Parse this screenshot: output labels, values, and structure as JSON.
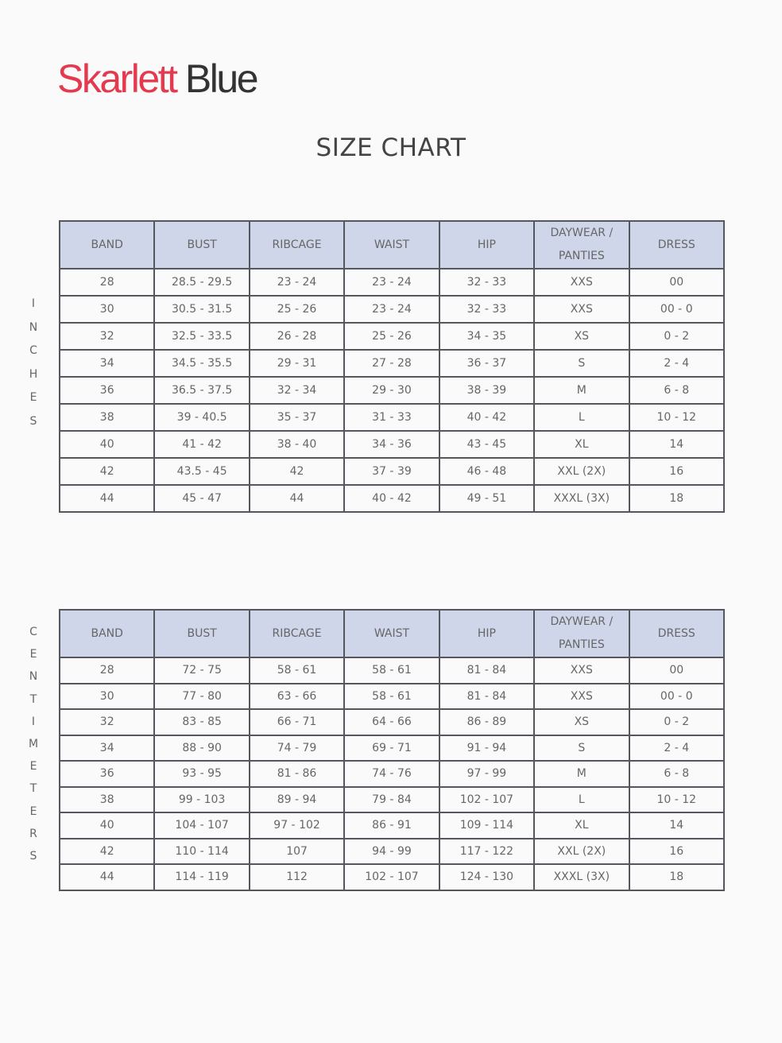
{
  "brand": {
    "part1": "Skarlett",
    "part2": "Blue",
    "colors": {
      "part1": "#e33a4f",
      "part2": "#333333"
    }
  },
  "title": "SIZE CHART",
  "header_color": "#d0d6e9",
  "headers": [
    "BAND",
    "BUST",
    "RIBCAGE",
    "WAIST",
    "HIP",
    "DAYWEAR / PANTIES",
    "DRESS"
  ],
  "inches": {
    "label": [
      "I",
      "N",
      "C",
      "H",
      "E",
      "S"
    ],
    "rows": [
      [
        "28",
        "28.5 - 29.5",
        "23 - 24",
        "23 - 24",
        "32 - 33",
        "XXS",
        "00"
      ],
      [
        "30",
        "30.5 - 31.5",
        "25 - 26",
        "23 - 24",
        "32 - 33",
        "XXS",
        "00 - 0"
      ],
      [
        "32",
        "32.5 - 33.5",
        "26 - 28",
        "25 - 26",
        "34 - 35",
        "XS",
        "0 - 2"
      ],
      [
        "34",
        "34.5 - 35.5",
        "29 - 31",
        "27 - 28",
        "36 - 37",
        "S",
        "2 - 4"
      ],
      [
        "36",
        "36.5 - 37.5",
        "32 - 34",
        "29 - 30",
        "38 - 39",
        "M",
        "6 - 8"
      ],
      [
        "38",
        "39 - 40.5",
        "35 - 37",
        "31 - 33",
        "40 - 42",
        "L",
        "10 - 12"
      ],
      [
        "40",
        "41 - 42",
        "38 - 40",
        "34 - 36",
        "43 - 45",
        "XL",
        "14"
      ],
      [
        "42",
        "43.5 - 45",
        "42",
        "37 - 39",
        "46 - 48",
        "XXL (2X)",
        "16"
      ],
      [
        "44",
        "45 - 47",
        "44",
        "40 - 42",
        "49 - 51",
        "XXXL (3X)",
        "18"
      ]
    ]
  },
  "centimeters": {
    "label": [
      "C",
      "E",
      "N",
      "T",
      "I",
      "M",
      "E",
      "T",
      "E",
      "R",
      "S"
    ],
    "rows": [
      [
        "28",
        "72 - 75",
        "58 - 61",
        "58 - 61",
        "81 - 84",
        "XXS",
        "00"
      ],
      [
        "30",
        "77 - 80",
        "63 - 66",
        "58 - 61",
        "81 - 84",
        "XXS",
        "00 - 0"
      ],
      [
        "32",
        "83 - 85",
        "66 - 71",
        "64 - 66",
        "86 - 89",
        "XS",
        "0 - 2"
      ],
      [
        "34",
        "88 - 90",
        "74 - 79",
        "69 - 71",
        "91 - 94",
        "S",
        "2 - 4"
      ],
      [
        "36",
        "93 - 95",
        "81 - 86",
        "74 - 76",
        "97 - 99",
        "M",
        "6 - 8"
      ],
      [
        "38",
        "99 - 103",
        "89 - 94",
        "79 - 84",
        "102 - 107",
        "L",
        "10 - 12"
      ],
      [
        "40",
        "104 - 107",
        "97 - 102",
        "86 - 91",
        "109 - 114",
        "XL",
        "14"
      ],
      [
        "42",
        "110 - 114",
        "107",
        "94 - 99",
        "117 - 122",
        "XXL (2X)",
        "16"
      ],
      [
        "44",
        "114 - 119",
        "112",
        "102 - 107",
        "124 - 130",
        "XXXL (3X)",
        "18"
      ]
    ]
  }
}
